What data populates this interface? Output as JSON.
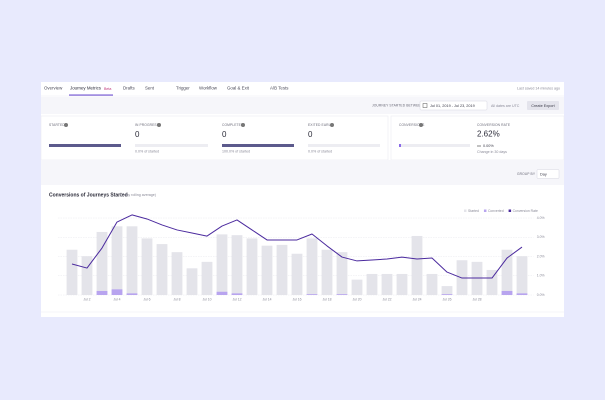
{
  "ui": {
    "tabs": [
      "Overview",
      "Journey Metrics",
      "Drafts",
      "Sent",
      "Trigger",
      "Workflow",
      "Goal & Exit",
      "A/B Tests"
    ],
    "beta_badge": "Beta",
    "last_saved": "Last saved 14 minutes ago",
    "date_filter_label": "JOURNEY STARTED BETWEEN",
    "date_range": "Jul 01, 2019 - Jul 23, 2019",
    "utc_note": "All dates are UTC",
    "export_button": "Create Export",
    "metrics": [
      {
        "label": "STARTED"
      },
      {
        "label": "IN PROGRESS",
        "value": "0",
        "note": "0.0% of started"
      },
      {
        "label": "COMPLETED",
        "value": "0",
        "note": "100.0% of started"
      },
      {
        "label": "EXITED EARLY",
        "value": "0",
        "note": "0.0% of started"
      },
      {
        "label": "CONVERSIONS"
      },
      {
        "label": "CONVERSION RATE",
        "value": "2.62%",
        "change": "0.00%",
        "note": "Change in 30 days"
      }
    ],
    "group_by_label": "GROUP BY",
    "group_by_value": "Day"
  },
  "chart_data": {
    "type": "bar",
    "title": "Conversions of Journeys Started",
    "subtitle": "(7-day rolling average)",
    "categories": [
      null,
      "Jul 2",
      null,
      "Jul 4",
      null,
      "Jul 6",
      null,
      "Jul 8",
      null,
      "Jul 10",
      null,
      "Jul 12",
      null,
      "Jul 14",
      null,
      "Jul 16",
      null,
      "Jul 18",
      null,
      "Jul 20",
      null,
      "Jul 22",
      null,
      "Jul 24",
      null,
      "Jul 26",
      null,
      "Jul 28",
      null,
      null,
      null
    ],
    "series": [
      {
        "name": "Started",
        "color": "#e4e4ea",
        "values": [
          56,
          48,
          78,
          85,
          85,
          70,
          63,
          53,
          33,
          41,
          75,
          74,
          70,
          61,
          62,
          51,
          70,
          56,
          53,
          19,
          26,
          26,
          26,
          73,
          26,
          11,
          43,
          41,
          31,
          56,
          48
        ]
      },
      {
        "name": "Converted",
        "color": "#b8a4ef",
        "values": [
          0,
          0,
          5,
          7,
          2,
          0,
          0,
          0,
          0,
          0,
          4,
          2,
          0,
          0,
          0,
          0,
          1,
          0,
          1,
          0,
          0,
          0,
          0,
          0,
          0,
          1,
          0,
          0,
          0,
          5,
          2
        ]
      },
      {
        "name": "Conversion Rate",
        "color": "#4b2a9e",
        "type": "line",
        "axis": "y2",
        "values": [
          1.61,
          1.4,
          2.44,
          3.79,
          4.16,
          3.95,
          3.64,
          3.38,
          3.22,
          3.06,
          3.58,
          3.9,
          3.38,
          2.86,
          2.86,
          2.86,
          3.17,
          2.55,
          1.97,
          1.77,
          1.82,
          1.87,
          1.97,
          1.87,
          1.92,
          1.19,
          0.88,
          0.88,
          0.88,
          1.92,
          2.49
        ]
      }
    ],
    "ylim": [
      0,
      100
    ],
    "y2lim": [
      0,
      4.2
    ],
    "y2ticks": [
      {
        "value": 0,
        "label": "0.0%"
      },
      {
        "value": 1,
        "label": "1.0%"
      },
      {
        "value": 2,
        "label": "2.0%"
      },
      {
        "value": 3,
        "label": "3.0%"
      },
      {
        "value": 4,
        "label": "4.0%"
      }
    ],
    "grid": true
  }
}
